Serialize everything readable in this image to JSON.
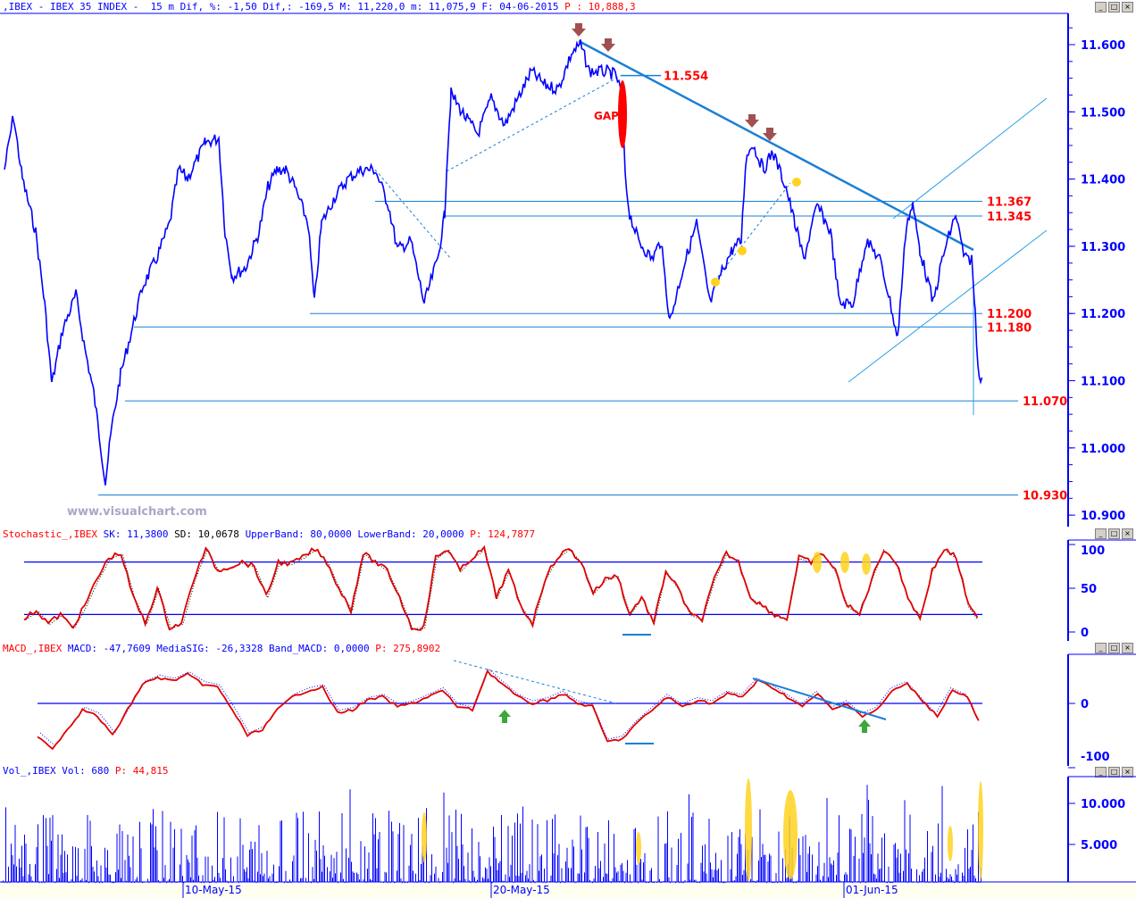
{
  "header": {
    "symbol_text": ",IBEX - IBEX 35 INDEX -  15 m Dif, %: -1,50 Dif,: -169,5 M: 11,220,0 m: 11,075,9 F: 04-06-2015",
    "price_text": "P : 10,888,3"
  },
  "watermark": "www.visualchart.com",
  "window_buttons": [
    "minimize",
    "maximize",
    "close"
  ],
  "chart_data": [
    {
      "type": "line",
      "title": "IBEX 35 INDEX 15 m",
      "yaxis_ticks": [
        "11.600",
        "11.500",
        "11.400",
        "11.300",
        "11.200",
        "11.100",
        "11.000",
        "10.900"
      ],
      "ylim": [
        10.88,
        11.65
      ],
      "x_tick_labels": [
        "10-May-15",
        "20-May-15",
        "01-Jun-15"
      ],
      "series": [
        {
          "values": [
            11.414,
            11.494,
            11.401,
            11.321,
            11.215,
            11.095,
            11.175,
            11.228,
            11.148,
            11.082,
            10.949,
            11.029,
            11.109,
            11.188,
            11.241,
            11.281,
            11.334,
            11.414,
            11.401,
            11.454,
            11.461,
            11.321,
            11.255,
            11.268,
            11.321,
            11.388,
            11.414,
            11.414,
            11.388,
            11.334,
            11.215,
            11.334,
            11.374,
            11.401,
            11.414,
            11.414,
            11.361,
            11.295,
            11.308,
            11.215,
            11.281,
            11.348,
            11.414,
            11.527,
            11.494,
            11.467,
            11.52,
            11.48,
            11.52,
            11.56,
            11.54,
            11.534,
            11.587,
            11.6,
            11.56,
            11.56,
            11.554,
            11.52,
            11.401,
            11.348,
            11.308,
            11.281,
            11.308,
            11.188,
            11.268,
            11.334,
            11.215,
            11.268,
            11.295,
            11.308,
            11.427,
            11.454,
            11.414,
            11.441,
            11.388,
            11.334,
            11.281,
            11.361,
            11.321,
            11.215,
            11.215,
            11.308,
            11.281,
            11.228,
            11.162,
            11.334,
            11.361,
            11.295,
            11.215,
            11.281,
            11.348,
            11.281,
            11.281,
            11.202,
            11.122,
            11.095
          ]
        }
      ],
      "levels": [
        "11.554",
        "11.367",
        "11.345",
        "11.200",
        "11.180",
        "11.070",
        "10.930"
      ],
      "annotations": [
        "GAP"
      ]
    },
    {
      "type": "line",
      "header": {
        "name": "Stochastic_,IBEX",
        "sk": "SK: 11,3800",
        "sd": "SD: 10,0678",
        "upper": "UpperBand: 80,0000",
        "lower": "LowerBand: 20,0000",
        "p": "P: 124,7877"
      },
      "yaxis_ticks": [
        "100",
        "50",
        "0"
      ],
      "ylim": [
        0,
        100
      ],
      "bands": [
        80,
        20
      ],
      "series": [
        {
          "values": [
            15,
            25,
            10,
            20,
            5,
            30,
            60,
            85,
            90,
            40,
            10,
            50,
            5,
            10,
            60,
            95,
            70,
            75,
            80,
            75,
            40,
            80,
            78,
            85,
            95,
            80,
            50,
            25,
            90,
            80,
            70,
            40,
            5,
            5,
            85,
            95,
            70,
            85,
            95,
            40,
            70,
            30,
            10,
            60,
            85,
            95,
            80,
            45,
            60,
            65,
            20,
            40,
            10,
            70,
            50,
            20,
            15,
            60,
            90,
            80,
            40,
            30,
            20,
            15,
            85,
            80,
            90,
            70,
            30,
            20,
            60,
            95,
            80,
            40,
            15,
            70,
            95,
            85,
            30,
            10
          ]
        }
      ]
    },
    {
      "type": "line",
      "header": {
        "name": "MACD_,IBEX",
        "macd": "MACD: -47,7609",
        "signal": "MediaSIG: -26,3328",
        "band": "Band_MACD: 0,0000",
        "p": "P: 275,8902"
      },
      "yaxis_ticks": [
        "0",
        "-100"
      ],
      "ylim": [
        -100,
        70
      ],
      "series": [
        {
          "values": [
            -50,
            -70,
            -40,
            -10,
            -20,
            -50,
            -10,
            30,
            40,
            35,
            45,
            30,
            25,
            -10,
            -50,
            -40,
            -10,
            10,
            20,
            25,
            -15,
            -10,
            5,
            10,
            -5,
            0,
            10,
            20,
            -5,
            -10,
            50,
            30,
            10,
            0,
            5,
            15,
            0,
            -5,
            -60,
            -55,
            -30,
            -10,
            10,
            -5,
            5,
            0,
            15,
            10,
            35,
            25,
            10,
            -5,
            15,
            -10,
            0,
            -20,
            -10,
            20,
            30,
            5,
            -20,
            20,
            10,
            -40
          ]
        }
      ]
    },
    {
      "type": "bar",
      "header": {
        "name": "Vol_,IBEX",
        "vol": "Vol: 680",
        "p": "P: 44,815"
      },
      "yaxis_ticks": [
        "10.000",
        "5.000"
      ],
      "ylim": [
        0,
        13500
      ]
    }
  ],
  "colors": {
    "price": "#0000ff",
    "trend": "#1a7fd6",
    "level_text": "#ff0000",
    "stoch": "#ff0000",
    "highlight": "#ffd21e",
    "arrow": "#a05050"
  }
}
